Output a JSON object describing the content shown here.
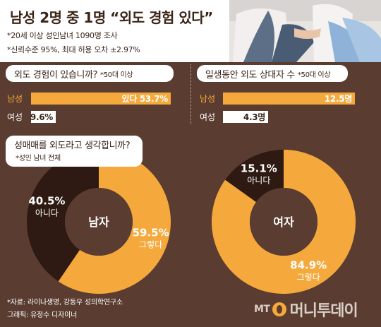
{
  "header": {
    "title": "남성 2명 중 1명 “외도 경험 있다”",
    "subtitle1": "*20세 이상 성인남녀 1090명 조사",
    "subtitle2": "*신뢰수준 95%, 최대 허용 오차 ±2.97%"
  },
  "colors": {
    "accent": "#f5a93c",
    "panel": "#5a3c30",
    "dark": "#2e1a12",
    "white": "#ffffff"
  },
  "chart_data": [
    {
      "type": "bar",
      "title": "외도 경험이 있습니까?",
      "note": "*50대 이상",
      "categories": [
        "남성",
        "여성"
      ],
      "values": [
        53.7,
        9.6
      ],
      "value_labels": [
        "있다 53.7%",
        "9.6%"
      ],
      "xlim": [
        0,
        55
      ]
    },
    {
      "type": "bar",
      "title": "일생동안 외도 상대자 수",
      "note": "*50대 이상",
      "categories": [
        "남성",
        "여성"
      ],
      "values": [
        12.5,
        4.3
      ],
      "value_labels": [
        "12.5명",
        "4.3명"
      ],
      "xlim": [
        0,
        13
      ]
    },
    {
      "type": "pie",
      "title": "성매매를 외도라고 생각합니까?",
      "note": "*성인 남녀 전체",
      "center_label": "남자",
      "slices": [
        {
          "label": "그렇다",
          "value": 59.5,
          "value_text": "59.5%",
          "color": "#f5a93c"
        },
        {
          "label": "아니다",
          "value": 40.5,
          "value_text": "40.5%",
          "color": "#2e1a12"
        }
      ]
    },
    {
      "type": "pie",
      "center_label": "여자",
      "slices": [
        {
          "label": "그렇다",
          "value": 84.9,
          "value_text": "84.9%",
          "color": "#f5a93c"
        },
        {
          "label": "아니다",
          "value": 15.1,
          "value_text": "15.1%",
          "color": "#2e1a12"
        }
      ]
    }
  ],
  "footer": {
    "source": "*자료: 라이나생명, 강동우 성의학연구소",
    "graphic": "그래픽: 유정수 디자이너",
    "logo_mt": "MT",
    "logo_name": "머니투데이"
  }
}
